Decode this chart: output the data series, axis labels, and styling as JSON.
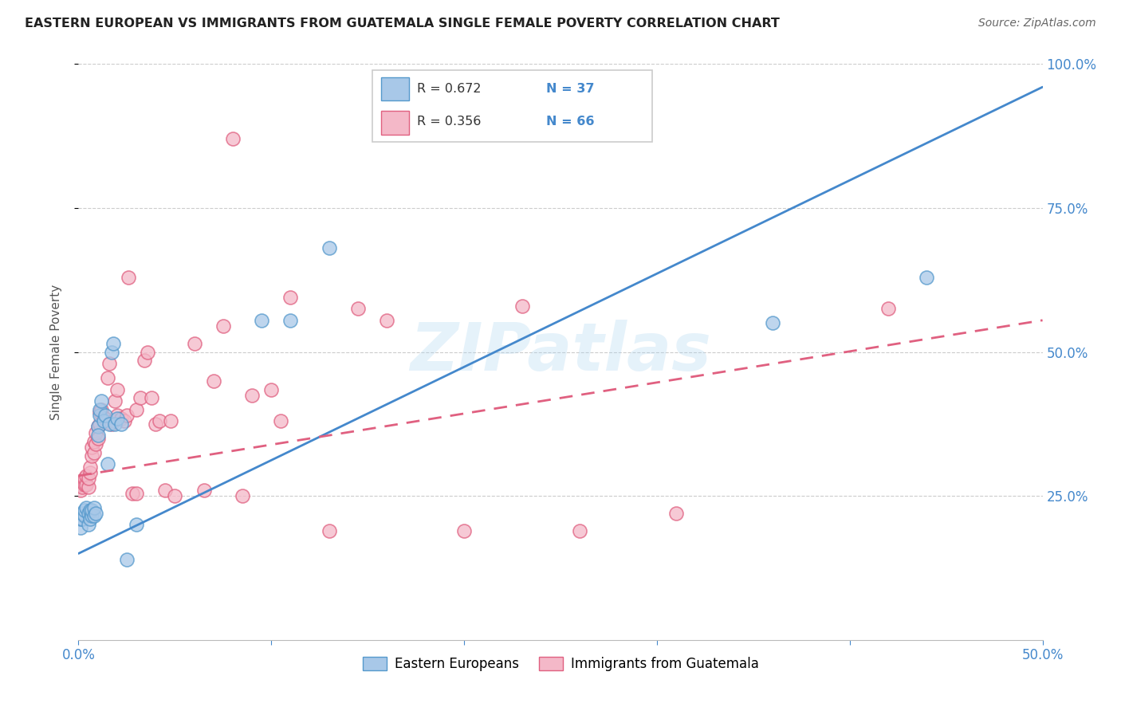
{
  "title": "EASTERN EUROPEAN VS IMMIGRANTS FROM GUATEMALA SINGLE FEMALE POVERTY CORRELATION CHART",
  "source": "Source: ZipAtlas.com",
  "ylabel": "Single Female Poverty",
  "legend_label1": "Eastern Europeans",
  "legend_label2": "Immigrants from Guatemala",
  "R1": 0.672,
  "N1": 37,
  "R2": 0.356,
  "N2": 66,
  "blue_color": "#a8c8e8",
  "blue_edge_color": "#5599cc",
  "pink_color": "#f4b8c8",
  "pink_edge_color": "#e06080",
  "blue_line_color": "#4488cc",
  "pink_line_color": "#e06080",
  "axis_label_color": "#4488cc",
  "watermark": "ZIPatlas",
  "blue_line_x0": 0.0,
  "blue_line_y0": 0.15,
  "blue_line_x1": 0.5,
  "blue_line_y1": 0.96,
  "pink_line_x0": 0.0,
  "pink_line_y0": 0.285,
  "pink_line_x1": 0.5,
  "pink_line_y1": 0.555,
  "blue_scatter_x": [
    0.001,
    0.001,
    0.002,
    0.002,
    0.003,
    0.003,
    0.004,
    0.005,
    0.005,
    0.006,
    0.006,
    0.007,
    0.007,
    0.008,
    0.008,
    0.009,
    0.01,
    0.01,
    0.011,
    0.011,
    0.012,
    0.013,
    0.014,
    0.015,
    0.016,
    0.017,
    0.018,
    0.019,
    0.02,
    0.022,
    0.025,
    0.03,
    0.095,
    0.11,
    0.13,
    0.36,
    0.44
  ],
  "blue_scatter_y": [
    0.195,
    0.21,
    0.21,
    0.22,
    0.215,
    0.225,
    0.23,
    0.2,
    0.22,
    0.21,
    0.225,
    0.215,
    0.225,
    0.215,
    0.23,
    0.22,
    0.37,
    0.355,
    0.39,
    0.4,
    0.415,
    0.38,
    0.39,
    0.305,
    0.375,
    0.5,
    0.515,
    0.375,
    0.385,
    0.375,
    0.14,
    0.2,
    0.555,
    0.555,
    0.68,
    0.55,
    0.63
  ],
  "pink_scatter_x": [
    0.001,
    0.001,
    0.002,
    0.002,
    0.003,
    0.003,
    0.004,
    0.004,
    0.005,
    0.005,
    0.006,
    0.006,
    0.007,
    0.007,
    0.008,
    0.008,
    0.009,
    0.009,
    0.01,
    0.01,
    0.011,
    0.011,
    0.012,
    0.013,
    0.014,
    0.015,
    0.016,
    0.017,
    0.018,
    0.019,
    0.02,
    0.02,
    0.022,
    0.024,
    0.025,
    0.026,
    0.028,
    0.03,
    0.03,
    0.032,
    0.034,
    0.036,
    0.038,
    0.04,
    0.042,
    0.045,
    0.048,
    0.05,
    0.06,
    0.065,
    0.07,
    0.075,
    0.08,
    0.085,
    0.09,
    0.1,
    0.105,
    0.11,
    0.13,
    0.145,
    0.16,
    0.2,
    0.23,
    0.26,
    0.31,
    0.42
  ],
  "pink_scatter_y": [
    0.26,
    0.27,
    0.265,
    0.275,
    0.27,
    0.28,
    0.27,
    0.285,
    0.265,
    0.28,
    0.29,
    0.3,
    0.32,
    0.335,
    0.325,
    0.345,
    0.34,
    0.36,
    0.37,
    0.35,
    0.395,
    0.375,
    0.4,
    0.385,
    0.385,
    0.455,
    0.48,
    0.375,
    0.38,
    0.415,
    0.435,
    0.39,
    0.385,
    0.38,
    0.39,
    0.63,
    0.255,
    0.255,
    0.4,
    0.42,
    0.485,
    0.5,
    0.42,
    0.375,
    0.38,
    0.26,
    0.38,
    0.25,
    0.515,
    0.26,
    0.45,
    0.545,
    0.87,
    0.25,
    0.425,
    0.435,
    0.38,
    0.595,
    0.19,
    0.575,
    0.555,
    0.19,
    0.58,
    0.19,
    0.22,
    0.575
  ],
  "xlim": [
    0.0,
    0.5
  ],
  "ylim": [
    0.0,
    1.0
  ],
  "yticks": [
    0.25,
    0.5,
    0.75,
    1.0
  ],
  "ytick_labels": [
    "25.0%",
    "50.0%",
    "75.0%",
    "100.0%"
  ],
  "xticks": [
    0.0,
    0.1,
    0.2,
    0.3,
    0.4,
    0.5
  ],
  "xtick_labels": [
    "0.0%",
    "",
    "",
    "",
    "",
    "50.0%"
  ]
}
